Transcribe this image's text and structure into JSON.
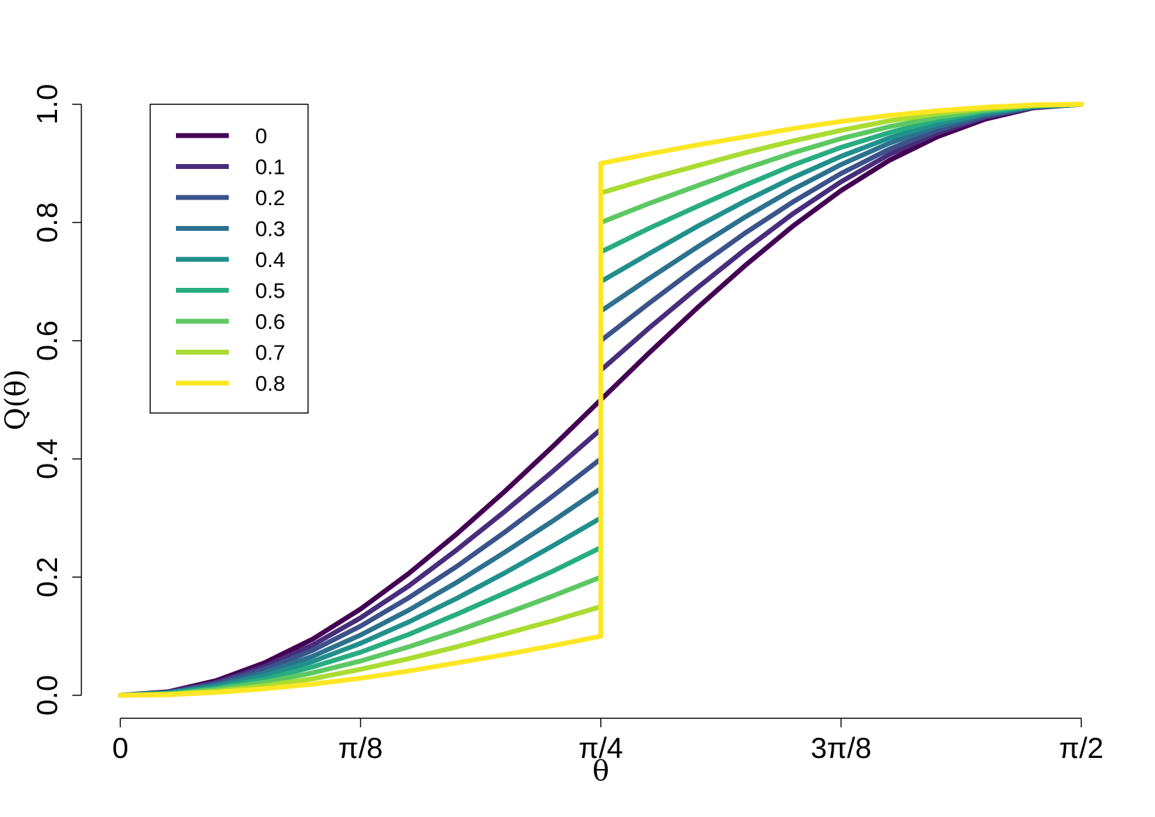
{
  "chart_data": {
    "type": "line",
    "xlabel": "θ",
    "ylabel": "Q(θ)",
    "xlim": [
      0,
      1.5707963
    ],
    "ylim": [
      0,
      1
    ],
    "x_ticks": [
      {
        "value": 0,
        "label": "0"
      },
      {
        "value": 0.3926991,
        "label": "π/8"
      },
      {
        "value": 0.7853982,
        "label": "π/4"
      },
      {
        "value": 1.1780972,
        "label": "3π/8"
      },
      {
        "value": 1.5707963,
        "label": "π/2"
      }
    ],
    "y_ticks": [
      {
        "value": 0,
        "label": "0.0"
      },
      {
        "value": 0.2,
        "label": "0.2"
      },
      {
        "value": 0.4,
        "label": "0.4"
      },
      {
        "value": 0.6,
        "label": "0.6"
      },
      {
        "value": 0.8,
        "label": "0.8"
      },
      {
        "value": 1,
        "label": "1.0"
      }
    ],
    "grid": false,
    "legend_position": "top-left",
    "x": [
      0,
      0.0785398,
      0.1570796,
      0.2356194,
      0.3141593,
      0.3926991,
      0.4712389,
      0.5497787,
      0.6283185,
      0.7068583,
      0.7853982,
      0.7853982,
      0.863938,
      0.9424778,
      1.0210176,
      1.0995574,
      1.1780972,
      1.2566371,
      1.3351769,
      1.4137167,
      1.4922565,
      1.5707963
    ],
    "series": [
      {
        "name": "0",
        "color": "#440154",
        "values": [
          0,
          0.006,
          0.025,
          0.055,
          0.095,
          0.146,
          0.206,
          0.273,
          0.345,
          0.421,
          0.5,
          0.5,
          0.579,
          0.655,
          0.727,
          0.794,
          0.854,
          0.905,
          0.945,
          0.975,
          0.994,
          1
        ]
      },
      {
        "name": "0.1",
        "color": "#472D7B",
        "values": [
          0,
          0.005,
          0.022,
          0.049,
          0.085,
          0.131,
          0.185,
          0.246,
          0.311,
          0.379,
          0.45,
          0.55,
          0.621,
          0.689,
          0.754,
          0.815,
          0.869,
          0.915,
          0.951,
          0.978,
          0.995,
          1
        ]
      },
      {
        "name": "0.2",
        "color": "#3B528B",
        "values": [
          0,
          0.005,
          0.02,
          0.044,
          0.076,
          0.117,
          0.165,
          0.218,
          0.276,
          0.337,
          0.4,
          0.6,
          0.663,
          0.724,
          0.782,
          0.835,
          0.883,
          0.924,
          0.956,
          0.98,
          0.995,
          1
        ]
      },
      {
        "name": "0.3",
        "color": "#2C728E",
        "values": [
          0,
          0.004,
          0.017,
          0.038,
          0.066,
          0.102,
          0.144,
          0.191,
          0.242,
          0.295,
          0.35,
          0.65,
          0.705,
          0.758,
          0.809,
          0.856,
          0.898,
          0.934,
          0.962,
          0.983,
          0.996,
          1
        ]
      },
      {
        "name": "0.4",
        "color": "#21908C",
        "values": [
          0,
          0.004,
          0.015,
          0.033,
          0.057,
          0.088,
          0.124,
          0.164,
          0.207,
          0.253,
          0.3,
          0.7,
          0.747,
          0.793,
          0.836,
          0.876,
          0.912,
          0.943,
          0.967,
          0.985,
          0.996,
          1
        ]
      },
      {
        "name": "0.5",
        "color": "#27AD81",
        "values": [
          0,
          0.003,
          0.012,
          0.027,
          0.048,
          0.073,
          0.103,
          0.137,
          0.173,
          0.21,
          0.25,
          0.75,
          0.79,
          0.827,
          0.863,
          0.897,
          0.927,
          0.952,
          0.973,
          0.988,
          0.997,
          1
        ]
      },
      {
        "name": "0.6",
        "color": "#5DC863",
        "values": [
          0,
          0.002,
          0.01,
          0.022,
          0.038,
          0.058,
          0.082,
          0.109,
          0.138,
          0.168,
          0.2,
          0.8,
          0.832,
          0.862,
          0.891,
          0.918,
          0.942,
          0.962,
          0.978,
          0.99,
          0.998,
          1
        ]
      },
      {
        "name": "0.7",
        "color": "#AADC32",
        "values": [
          0,
          0.002,
          0.007,
          0.016,
          0.028,
          0.044,
          0.062,
          0.082,
          0.104,
          0.126,
          0.15,
          0.85,
          0.874,
          0.896,
          0.918,
          0.938,
          0.956,
          0.972,
          0.984,
          0.993,
          0.998,
          1
        ]
      },
      {
        "name": "0.8",
        "color": "#FDE725",
        "values": [
          0,
          0.001,
          0.005,
          0.011,
          0.019,
          0.029,
          0.041,
          0.055,
          0.069,
          0.084,
          0.1,
          0.9,
          0.916,
          0.931,
          0.945,
          0.959,
          0.971,
          0.981,
          0.989,
          0.995,
          0.999,
          1
        ]
      }
    ]
  }
}
